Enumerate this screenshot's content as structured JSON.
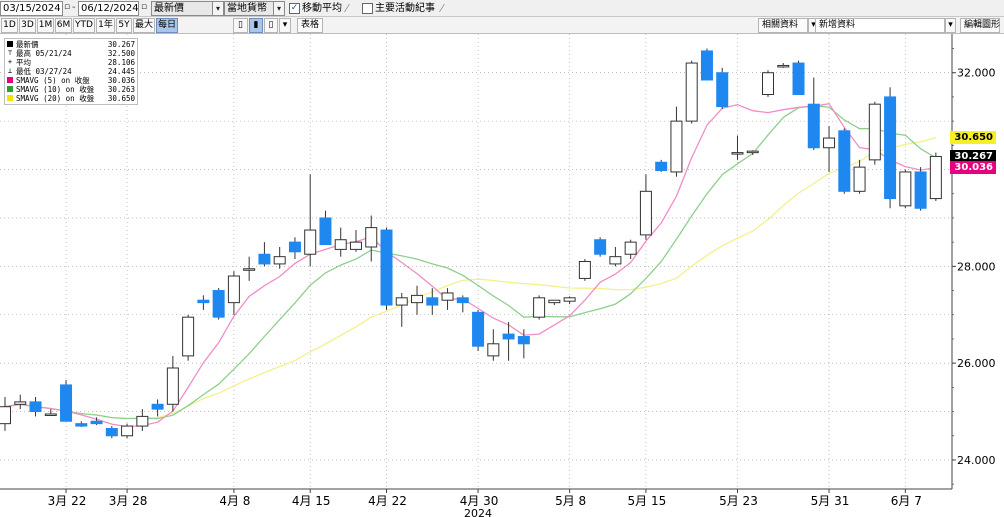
{
  "toolbar": {
    "start_date": "03/15/2024",
    "end_date": "06/12/2024",
    "price_field": "最新價",
    "currency": "當地貨幣",
    "moving_avg_label": "移動平均",
    "events_label": "主要活動紀事",
    "related_data": "相關資料",
    "new_data": "新增資料",
    "edit_chart": "編輯圖形",
    "table_label": "表格",
    "periods": [
      "1D",
      "3D",
      "1M",
      "6M",
      "YTD",
      "1年",
      "5Y",
      "最大",
      "每日"
    ],
    "active_period": "每日"
  },
  "legend": {
    "items": [
      {
        "name": "最新價",
        "value": "30.267",
        "mark": "square",
        "color": "#000000"
      },
      {
        "name": "最高 05/21/24",
        "value": "32.500",
        "mark": "T",
        "color": "#000000"
      },
      {
        "name": "平均",
        "value": "28.106",
        "mark": "plus",
        "color": "#000000"
      },
      {
        "name": "最低 03/27/24",
        "value": "24.445",
        "mark": "down",
        "color": "#000000"
      },
      {
        "name": "SMAVG (5)  on 收盤",
        "value": "30.036",
        "mark": "square",
        "color": "#e6007e"
      },
      {
        "name": "SMAVG (10)  on 收盤",
        "value": "30.263",
        "mark": "square",
        "color": "#2ca02c"
      },
      {
        "name": "SMAVG (20)  on 收盤",
        "value": "30.650",
        "mark": "square",
        "color": "#f2e600"
      }
    ]
  },
  "flags": [
    {
      "value": "30.650",
      "bg": "#f7ef25",
      "fg": "#000000"
    },
    {
      "value": "30.267",
      "bg": "#000000",
      "fg": "#ffffff"
    },
    {
      "value": "30.036",
      "bg": "#e6007e",
      "fg": "#ffffff"
    }
  ],
  "colors": {
    "up_fill": "#ffffff",
    "down_fill": "#1e88f0",
    "wick": "#333333",
    "sma5": "#f08cc8",
    "sma10": "#8cd08c",
    "sma20": "#f4f08c",
    "grid": "#9a9a9a"
  },
  "chart_data": {
    "type": "candlestick",
    "ylim": [
      23.4,
      32.8
    ],
    "y_ticks": [
      "24.000",
      "26.000",
      "28.000",
      "32.000"
    ],
    "x_ticks": [
      "3月 22",
      "3月 28",
      "4月 8",
      "4月 15",
      "4月 22",
      "4月 30",
      "5月 8",
      "5月 15",
      "5月 23",
      "5月 31",
      "6月 7"
    ],
    "year_label": "2024",
    "candles": [
      {
        "o": 24.75,
        "h": 25.3,
        "l": 24.6,
        "c": 25.1
      },
      {
        "o": 25.15,
        "h": 25.35,
        "l": 25.05,
        "c": 25.2
      },
      {
        "o": 25.2,
        "h": 25.3,
        "l": 24.9,
        "c": 25.0
      },
      {
        "o": 24.95,
        "h": 25.05,
        "l": 24.92,
        "c": 24.95
      },
      {
        "o": 25.55,
        "h": 25.65,
        "l": 24.8,
        "c": 24.8
      },
      {
        "o": 24.75,
        "h": 24.8,
        "l": 24.68,
        "c": 24.7
      },
      {
        "o": 24.8,
        "h": 24.88,
        "l": 24.72,
        "c": 24.75
      },
      {
        "o": 24.65,
        "h": 24.7,
        "l": 24.45,
        "c": 24.5
      },
      {
        "o": 24.5,
        "h": 24.75,
        "l": 24.45,
        "c": 24.7
      },
      {
        "o": 24.7,
        "h": 25.05,
        "l": 24.6,
        "c": 24.9
      },
      {
        "o": 25.15,
        "h": 25.25,
        "l": 24.9,
        "c": 25.05
      },
      {
        "o": 25.15,
        "h": 26.15,
        "l": 25.0,
        "c": 25.9
      },
      {
        "o": 26.15,
        "h": 27.0,
        "l": 26.05,
        "c": 26.95
      },
      {
        "o": 27.3,
        "h": 27.4,
        "l": 27.1,
        "c": 27.25
      },
      {
        "o": 27.5,
        "h": 27.55,
        "l": 26.9,
        "c": 26.95
      },
      {
        "o": 27.25,
        "h": 27.9,
        "l": 27.0,
        "c": 27.8
      },
      {
        "o": 27.95,
        "h": 28.2,
        "l": 27.7,
        "c": 27.95
      },
      {
        "o": 28.25,
        "h": 28.5,
        "l": 28.0,
        "c": 28.05
      },
      {
        "o": 28.05,
        "h": 28.4,
        "l": 27.95,
        "c": 28.2
      },
      {
        "o": 28.5,
        "h": 28.6,
        "l": 28.15,
        "c": 28.3
      },
      {
        "o": 28.25,
        "h": 29.9,
        "l": 28.0,
        "c": 28.75
      },
      {
        "o": 29.0,
        "h": 29.15,
        "l": 28.45,
        "c": 28.45
      },
      {
        "o": 28.35,
        "h": 28.8,
        "l": 28.2,
        "c": 28.55
      },
      {
        "o": 28.35,
        "h": 28.75,
        "l": 28.3,
        "c": 28.5
      },
      {
        "o": 28.4,
        "h": 29.05,
        "l": 28.1,
        "c": 28.8
      },
      {
        "o": 28.75,
        "h": 28.8,
        "l": 27.1,
        "c": 27.2
      },
      {
        "o": 27.2,
        "h": 27.45,
        "l": 26.75,
        "c": 27.35
      },
      {
        "o": 27.25,
        "h": 27.6,
        "l": 27.0,
        "c": 27.4
      },
      {
        "o": 27.35,
        "h": 27.55,
        "l": 27.0,
        "c": 27.2
      },
      {
        "o": 27.3,
        "h": 27.55,
        "l": 27.1,
        "c": 27.45
      },
      {
        "o": 27.35,
        "h": 27.4,
        "l": 27.05,
        "c": 27.25
      },
      {
        "o": 27.05,
        "h": 27.1,
        "l": 26.25,
        "c": 26.35
      },
      {
        "o": 26.15,
        "h": 26.7,
        "l": 26.05,
        "c": 26.4
      },
      {
        "o": 26.6,
        "h": 26.85,
        "l": 26.05,
        "c": 26.5
      },
      {
        "o": 26.55,
        "h": 26.7,
        "l": 26.1,
        "c": 26.4
      },
      {
        "o": 26.95,
        "h": 27.4,
        "l": 26.9,
        "c": 27.35
      },
      {
        "o": 27.25,
        "h": 27.3,
        "l": 27.2,
        "c": 27.3
      },
      {
        "o": 27.28,
        "h": 27.38,
        "l": 27.22,
        "c": 27.35
      },
      {
        "o": 27.75,
        "h": 28.15,
        "l": 27.7,
        "c": 28.1
      },
      {
        "o": 28.55,
        "h": 28.6,
        "l": 28.2,
        "c": 28.25
      },
      {
        "o": 28.05,
        "h": 28.4,
        "l": 28.0,
        "c": 28.2
      },
      {
        "o": 28.25,
        "h": 28.55,
        "l": 28.15,
        "c": 28.5
      },
      {
        "o": 28.65,
        "h": 29.9,
        "l": 28.55,
        "c": 29.55
      },
      {
        "o": 30.15,
        "h": 30.2,
        "l": 29.95,
        "c": 29.98
      },
      {
        "o": 29.95,
        "h": 31.3,
        "l": 29.85,
        "c": 31.0
      },
      {
        "o": 31.0,
        "h": 32.25,
        "l": 30.95,
        "c": 32.2
      },
      {
        "o": 32.45,
        "h": 32.5,
        "l": 31.85,
        "c": 31.85
      },
      {
        "o": 32.0,
        "h": 32.1,
        "l": 31.25,
        "c": 31.3
      },
      {
        "o": 30.35,
        "h": 30.7,
        "l": 30.2,
        "c": 30.35
      },
      {
        "o": 30.35,
        "h": 30.4,
        "l": 30.3,
        "c": 30.38
      },
      {
        "o": 31.55,
        "h": 32.05,
        "l": 31.5,
        "c": 32.0
      },
      {
        "o": 32.15,
        "h": 32.2,
        "l": 32.1,
        "c": 32.15
      },
      {
        "o": 32.2,
        "h": 32.25,
        "l": 31.55,
        "c": 31.55
      },
      {
        "o": 31.35,
        "h": 31.9,
        "l": 30.4,
        "c": 30.45
      },
      {
        "o": 30.45,
        "h": 30.9,
        "l": 29.95,
        "c": 30.65
      },
      {
        "o": 30.8,
        "h": 30.85,
        "l": 29.5,
        "c": 29.55
      },
      {
        "o": 29.55,
        "h": 30.2,
        "l": 29.5,
        "c": 30.05
      },
      {
        "o": 30.2,
        "h": 31.4,
        "l": 30.1,
        "c": 31.35
      },
      {
        "o": 31.5,
        "h": 31.7,
        "l": 29.2,
        "c": 29.4
      },
      {
        "o": 29.25,
        "h": 30.0,
        "l": 29.2,
        "c": 29.95
      },
      {
        "o": 29.95,
        "h": 30.05,
        "l": 29.15,
        "c": 29.2
      },
      {
        "o": 29.4,
        "h": 30.35,
        "l": 29.35,
        "c": 30.27
      }
    ]
  }
}
